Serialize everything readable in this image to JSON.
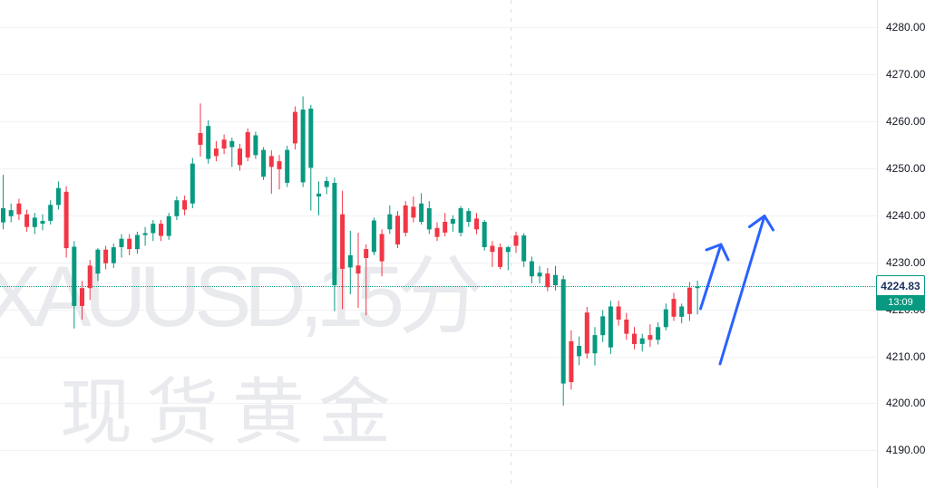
{
  "watermark": {
    "line1": "XAUUSD,15分",
    "line2": "现货黄金"
  },
  "price_label": {
    "price": "4224.83",
    "time": "13:09"
  },
  "axis": {
    "labels": [
      "4280.00",
      "4270.00",
      "4260.00",
      "4250.00",
      "4240.00",
      "4230.00",
      "4220.00",
      "4210.00",
      "4200.00",
      "4190.00"
    ],
    "values": [
      4280,
      4270,
      4260,
      4250,
      4240,
      4230,
      4220,
      4210,
      4200,
      4190
    ]
  },
  "colors": {
    "up": "#089981",
    "down": "#F23645",
    "arrow": "#2962FF",
    "price_line": "#089981",
    "grid": "#f0f1f4",
    "axis_text": "#131722"
  },
  "chart_data": {
    "type": "candlestick",
    "symbol": "XAUUSD",
    "interval": "15分",
    "title_watermark": "XAUUSD,15分 / 现货黄金",
    "last_price": 4224.83,
    "last_time": "13:09",
    "ylim": [
      4185,
      4285
    ],
    "y_gridlines": [
      4280,
      4270,
      4260,
      4250,
      4240,
      4230,
      4220,
      4210,
      4200,
      4190
    ],
    "grid": "horizontal-only",
    "legend_position": "none",
    "candles_ohlc": [
      [
        4238.5,
        4248.6,
        4237.0,
        4241.5
      ],
      [
        4239.8,
        4242.5,
        4238.5,
        4241.1
      ],
      [
        4242.5,
        4243.5,
        4239.0,
        4240.2
      ],
      [
        4240.2,
        4241.2,
        4236.5,
        4237.5
      ],
      [
        4237.5,
        4240.5,
        4236.0,
        4239.5
      ],
      [
        4238.2,
        4240.2,
        4236.8,
        4238.8
      ],
      [
        4238.8,
        4243.2,
        4238.0,
        4242.2
      ],
      [
        4242.2,
        4247.2,
        4241.2,
        4245.8
      ],
      [
        4245.0,
        4246.2,
        4231.0,
        4233.0
      ],
      [
        4220.7,
        4234.5,
        4215.9,
        4233.3
      ],
      [
        4224.5,
        4226.0,
        4217.8,
        4220.7
      ],
      [
        4229.3,
        4230.5,
        4222.0,
        4224.5
      ],
      [
        4227.6,
        4233.0,
        4226.0,
        4232.7
      ],
      [
        4232.7,
        4233.5,
        4228.5,
        4229.8
      ],
      [
        4229.8,
        4234.0,
        4228.8,
        4233.2
      ],
      [
        4233.2,
        4236.0,
        4231.0,
        4235.0
      ],
      [
        4235.0,
        4236.0,
        4231.5,
        4232.8
      ],
      [
        4232.8,
        4236.5,
        4231.8,
        4235.8
      ],
      [
        4235.8,
        4237.5,
        4233.5,
        4236.2
      ],
      [
        4236.2,
        4239.0,
        4234.5,
        4238.2
      ],
      [
        4238.2,
        4239.0,
        4234.5,
        4235.6
      ],
      [
        4235.6,
        4240.5,
        4234.8,
        4239.8
      ],
      [
        4239.8,
        4244.0,
        4239.0,
        4243.2
      ],
      [
        4243.2,
        4244.2,
        4240.0,
        4241.2
      ],
      [
        4242.5,
        4252.2,
        4241.5,
        4251.0
      ],
      [
        4257.5,
        4263.8,
        4252.5,
        4255.0
      ],
      [
        4252.0,
        4260.2,
        4251.0,
        4259.0
      ],
      [
        4254.2,
        4255.8,
        4251.5,
        4252.6
      ],
      [
        4256.1,
        4257.2,
        4253.0,
        4254.2
      ],
      [
        4254.5,
        4256.5,
        4250.3,
        4255.8
      ],
      [
        4254.2,
        4255.2,
        4249.5,
        4250.7
      ],
      [
        4257.7,
        4258.5,
        4251.5,
        4252.3
      ],
      [
        4252.8,
        4257.8,
        4252.0,
        4257.0
      ],
      [
        4248.2,
        4254.5,
        4247.5,
        4253.9
      ],
      [
        4252.6,
        4253.8,
        4244.6,
        4250.3
      ],
      [
        4251.5,
        4252.8,
        4245.5,
        4249.8
      ],
      [
        4246.9,
        4254.8,
        4246.0,
        4253.9
      ],
      [
        4262.0,
        4263.2,
        4254.0,
        4255.3
      ],
      [
        4247.0,
        4265.3,
        4246.0,
        4262.5
      ],
      [
        4250.1,
        4263.5,
        4241.0,
        4262.7
      ],
      [
        4244.0,
        4247.2,
        4240.0,
        4244.6
      ],
      [
        4246.0,
        4248.2,
        4244.5,
        4247.3
      ],
      [
        4225.1,
        4248.0,
        4219.6,
        4246.9
      ],
      [
        4240.2,
        4245.2,
        4220.0,
        4228.6
      ],
      [
        4228.9,
        4236.7,
        4223.2,
        4231.5
      ],
      [
        4229.3,
        4236.3,
        4220.3,
        4227.6
      ],
      [
        4232.8,
        4233.8,
        4218.7,
        4230.9
      ],
      [
        4232.2,
        4239.5,
        4231.5,
        4238.9
      ],
      [
        4236.0,
        4237.0,
        4227.0,
        4230.2
      ],
      [
        4237.0,
        4242.1,
        4236.0,
        4240.2
      ],
      [
        4239.9,
        4240.9,
        4233.0,
        4233.8
      ],
      [
        4242.1,
        4243.0,
        4235.5,
        4236.3
      ],
      [
        4241.8,
        4244.0,
        4238.5,
        4239.5
      ],
      [
        4238.6,
        4244.7,
        4238.0,
        4242.5
      ],
      [
        4237.0,
        4243.0,
        4236.0,
        4241.5
      ],
      [
        4237.3,
        4238.5,
        4234.5,
        4235.4
      ],
      [
        4238.6,
        4240.5,
        4235.5,
        4236.3
      ],
      [
        4238.2,
        4240.0,
        4236.5,
        4239.2
      ],
      [
        4236.3,
        4242.0,
        4235.5,
        4241.5
      ],
      [
        4238.6,
        4241.5,
        4237.5,
        4240.9
      ],
      [
        4239.3,
        4240.5,
        4236.0,
        4237.0
      ],
      [
        4233.2,
        4239.0,
        4232.5,
        4238.6
      ],
      [
        4233.5,
        4234.5,
        4229.0,
        4232.2
      ],
      [
        4233.2,
        4234.0,
        4228.5,
        4229.0
      ],
      [
        4232.2,
        4233.5,
        4228.3,
        4233.2
      ],
      [
        4235.7,
        4236.5,
        4232.0,
        4233.5
      ],
      [
        4230.2,
        4236.2,
        4229.0,
        4235.7
      ],
      [
        4227.0,
        4231.2,
        4225.5,
        4230.2
      ],
      [
        4227.0,
        4229.2,
        4225.5,
        4227.8
      ],
      [
        4227.6,
        4228.8,
        4223.8,
        4224.7
      ],
      [
        4225.1,
        4229.2,
        4224.0,
        4227.3
      ],
      [
        4204.2,
        4227.2,
        4199.5,
        4226.4
      ],
      [
        4213.2,
        4215.5,
        4202.9,
        4204.5
      ],
      [
        4210.0,
        4214.2,
        4208.1,
        4212.2
      ],
      [
        4219.3,
        4220.5,
        4209.5,
        4210.6
      ],
      [
        4210.6,
        4216.2,
        4208.0,
        4214.5
      ],
      [
        4214.5,
        4219.8,
        4213.0,
        4218.5
      ],
      [
        4211.9,
        4221.8,
        4210.5,
        4220.6
      ],
      [
        4220.6,
        4221.8,
        4216.5,
        4217.8
      ],
      [
        4217.8,
        4219.2,
        4213.5,
        4214.8
      ],
      [
        4214.8,
        4216.2,
        4211.5,
        4212.6
      ],
      [
        4212.6,
        4214.8,
        4211.0,
        4213.8
      ],
      [
        4214.5,
        4216.8,
        4212.0,
        4213.5
      ],
      [
        4213.5,
        4217.2,
        4212.5,
        4216.2
      ],
      [
        4216.2,
        4221.2,
        4215.5,
        4220.0
      ],
      [
        4222.2,
        4223.5,
        4217.5,
        4218.4
      ],
      [
        4218.4,
        4221.2,
        4217.0,
        4220.6
      ],
      [
        4224.6,
        4225.8,
        4217.5,
        4219.0
      ],
      [
        4224.5,
        4226.1,
        4218.9,
        4224.83
      ]
    ],
    "annotations": {
      "arrows": [
        {
          "shaft": [
            [
              772.5,
              341
            ],
            [
              795,
              270
            ]
          ],
          "barbs": [
            [
              779,
              276
            ],
            [
              795,
              270
            ],
            [
              803,
              287
            ]
          ]
        },
        {
          "shaft": [
            [
              794,
              402
            ],
            [
              843,
              238.5
            ]
          ],
          "barbs": [
            [
              826.5,
              250.5
            ],
            [
              843,
              238.5
            ],
            [
              852.5,
              254
            ]
          ]
        }
      ]
    }
  }
}
